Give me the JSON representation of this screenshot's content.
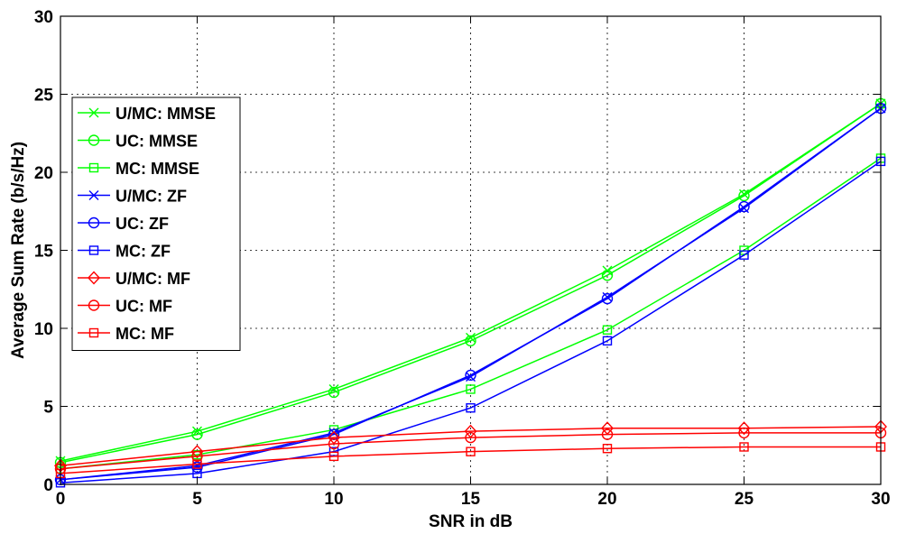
{
  "chart_data": {
    "type": "line",
    "title": "",
    "xlabel": "SNR in dB",
    "ylabel": "Average Sum Rate (b/s/Hz)",
    "x": [
      0,
      5,
      10,
      15,
      20,
      25,
      30
    ],
    "xlim": [
      0,
      30
    ],
    "ylim": [
      0,
      30
    ],
    "xticks": [
      "0",
      "5",
      "10",
      "15",
      "20",
      "25",
      "30"
    ],
    "yticks": [
      "0",
      "5",
      "10",
      "15",
      "20",
      "25",
      "30"
    ],
    "grid": true,
    "legend_position": "top-left",
    "series": [
      {
        "name": "U/MC: MMSE",
        "color": "#00ff00",
        "marker": "x",
        "values": [
          1.5,
          3.4,
          6.1,
          9.4,
          13.7,
          18.6,
          24.4
        ]
      },
      {
        "name": "UC: MMSE",
        "color": "#00ff00",
        "marker": "o",
        "values": [
          1.4,
          3.2,
          5.9,
          9.2,
          13.4,
          18.5,
          24.4
        ]
      },
      {
        "name": "MC: MMSE",
        "color": "#00ff00",
        "marker": "s",
        "values": [
          1.0,
          1.9,
          3.5,
          6.1,
          9.9,
          15.0,
          20.9
        ]
      },
      {
        "name": "U/MC: ZF",
        "color": "#0000ff",
        "marker": "x",
        "values": [
          0.3,
          1.2,
          3.3,
          6.9,
          12.0,
          17.7,
          24.1
        ]
      },
      {
        "name": "UC: ZF",
        "color": "#0000ff",
        "marker": "o",
        "values": [
          0.3,
          1.1,
          3.2,
          7.0,
          11.9,
          17.8,
          24.1
        ]
      },
      {
        "name": "MC: ZF",
        "color": "#0000ff",
        "marker": "s",
        "values": [
          0.1,
          0.7,
          2.1,
          4.9,
          9.2,
          14.7,
          20.7
        ]
      },
      {
        "name": "U/MC: MF",
        "color": "#ff0000",
        "marker": "d",
        "values": [
          1.2,
          2.1,
          3.0,
          3.4,
          3.6,
          3.6,
          3.7
        ]
      },
      {
        "name": "UC: MF",
        "color": "#ff0000",
        "marker": "o",
        "values": [
          1.0,
          1.8,
          2.6,
          3.0,
          3.2,
          3.3,
          3.3
        ]
      },
      {
        "name": "MC: MF",
        "color": "#ff0000",
        "marker": "s",
        "values": [
          0.7,
          1.3,
          1.8,
          2.1,
          2.3,
          2.4,
          2.4
        ]
      }
    ]
  }
}
